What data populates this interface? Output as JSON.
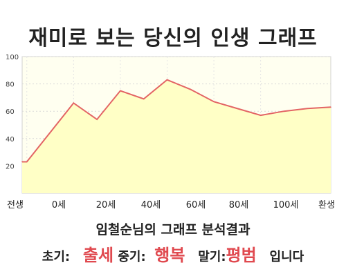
{
  "title": "재미로 보는 당신의 인생 그래프",
  "chart_data": {
    "type": "area",
    "title": "재미로 보는 당신의 인생 그래프",
    "x_tick_labels": [
      "전생",
      "0세",
      "20세",
      "40세",
      "60세",
      "80세",
      "100세",
      "환생"
    ],
    "x": [
      -1,
      0,
      10,
      15,
      20,
      25,
      30,
      35,
      40,
      45,
      50,
      55,
      60,
      65
    ],
    "y": [
      23,
      23,
      66,
      54,
      75,
      69,
      83,
      76,
      67,
      62,
      57,
      60,
      62,
      63
    ],
    "ylim": [
      0,
      100
    ],
    "yticks": [
      20,
      40,
      60,
      80,
      100
    ],
    "grid": true,
    "line_color": "#e36464",
    "fill_color": "#ffffc6"
  },
  "summary": {
    "subtitle": "임철순님의 그래프 분석결과",
    "early_label": "초기:",
    "early_value": "출세",
    "middle_label": "중기:",
    "middle_value": "행복",
    "late_label": "말기:",
    "late_value": "평범",
    "ending": "입니다"
  }
}
